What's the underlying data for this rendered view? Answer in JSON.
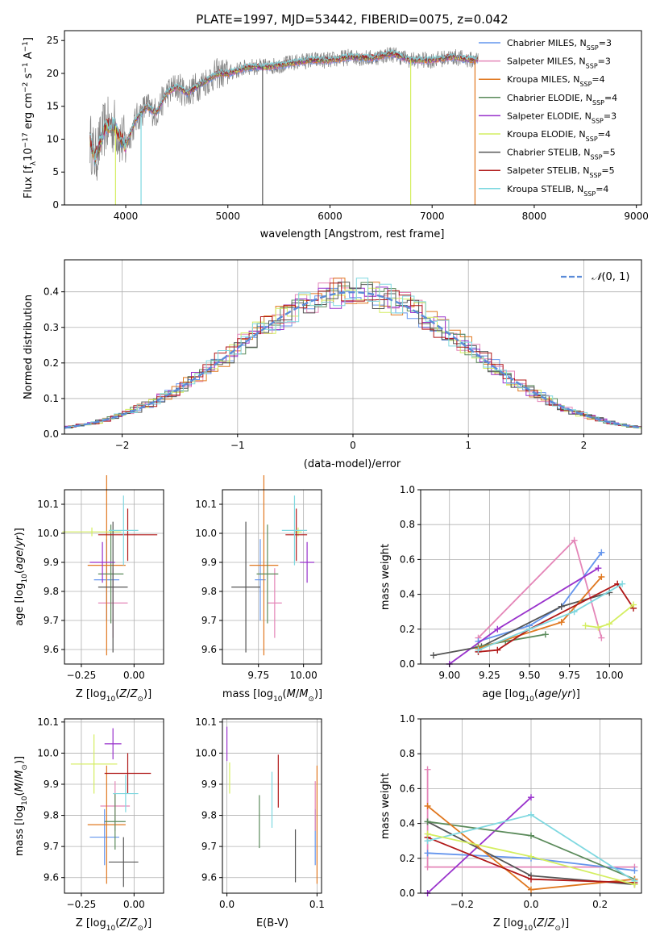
{
  "title": "PLATE=1997, MJD=53442, FIBERID=0075, z=0.042",
  "colors": {
    "Chabrier MILES": "#6495ed",
    "Salpeter MILES": "#e486b8",
    "Kroupa MILES": "#e07820",
    "Chabrier ELODIE": "#5a8a5a",
    "Salpeter ELODIE": "#9932cc",
    "Kroupa ELODIE": "#d4ee60",
    "Chabrier STELIB": "#555555",
    "Salpeter STELIB": "#b01818",
    "Kroupa STELIB": "#7fd8e0",
    "data": "#808080",
    "gaussian": "#5b8bd8"
  },
  "chart_data": [
    {
      "id": "spectrum",
      "type": "line",
      "xlabel": "wavelength [Angstrom, rest frame]",
      "xticks": [
        "4000",
        "5000",
        "6000",
        "7000",
        "8000",
        "9000"
      ],
      "yticks": [
        "0",
        "5",
        "10",
        "15",
        "20",
        "25"
      ],
      "xlim": [
        3400,
        9050
      ],
      "ylim": [
        0,
        26.5
      ],
      "legend_position": "upper right",
      "legend": [
        {
          "model": "Chabrier MILES",
          "nssp": "3"
        },
        {
          "model": "Salpeter MILES",
          "nssp": "3"
        },
        {
          "model": "Kroupa MILES",
          "nssp": "4"
        },
        {
          "model": "Chabrier ELODIE",
          "nssp": "4"
        },
        {
          "model": "Salpeter ELODIE",
          "nssp": "3"
        },
        {
          "model": "Kroupa ELODIE",
          "nssp": "4"
        },
        {
          "model": "Chabrier STELIB",
          "nssp": "5"
        },
        {
          "model": "Salpeter STELIB",
          "nssp": "5"
        },
        {
          "model": "Kroupa STELIB",
          "nssp": "4"
        }
      ],
      "data_envelope": {
        "x": [
          3650,
          3700,
          3800,
          3900,
          3950,
          4000,
          4100,
          4200,
          4300,
          4400,
          4500,
          4600,
          4700,
          4800,
          4900,
          5000,
          5200,
          5400,
          5600,
          5800,
          6000,
          6200,
          6400,
          6600,
          6800,
          7000,
          7200,
          7400,
          7600,
          7800,
          8000,
          8200,
          8400,
          8600,
          8800
        ],
        "y": [
          10,
          7,
          12,
          12,
          10,
          9,
          13,
          15,
          14,
          17,
          18,
          17,
          18,
          19,
          20,
          20,
          21,
          21,
          21.5,
          22,
          22,
          22.5,
          22.3,
          23,
          22,
          22,
          22.5,
          22,
          23,
          23,
          23,
          23.5,
          24,
          24.5,
          25
        ]
      },
      "drops": [
        {
          "x": 3900,
          "model": "Kroupa ELODIE"
        },
        {
          "x": 4150,
          "model": "Kroupa STELIB"
        },
        {
          "x": 5340,
          "model": "Chabrier STELIB"
        },
        {
          "x": 6790,
          "model": "Kroupa ELODIE"
        },
        {
          "x": 7420,
          "model": "Kroupa MILES"
        }
      ]
    },
    {
      "id": "residuals",
      "type": "step",
      "xlabel": "(data-model)/error",
      "ylabel": "Normed distribution",
      "xlim": [
        -2.5,
        2.5
      ],
      "ylim": [
        0,
        0.49
      ],
      "grid": true,
      "xticks": [
        "−2",
        "−1",
        "0",
        "1",
        "2"
      ],
      "yticks": [
        "0.0",
        "0.1",
        "0.2",
        "0.3",
        "0.4"
      ],
      "legend_label": "N(0,1)",
      "bin_width": 0.1,
      "curve": "normal pdf, mean 0, sigma 1"
    },
    {
      "id": "age-vs-Z",
      "type": "errorbar",
      "xlim": [
        -0.33,
        0.14
      ],
      "ylim": [
        9.55,
        10.15
      ],
      "xticks": [
        "−0.25",
        "0.00"
      ],
      "yticks": [
        "9.6",
        "9.7",
        "9.8",
        "9.9",
        "10.0",
        "10.1"
      ],
      "points": [
        {
          "model": "Chabrier MILES",
          "x": -0.13,
          "xe": 0.06,
          "y": 9.84,
          "ye": 0.14
        },
        {
          "model": "Salpeter MILES",
          "x": -0.1,
          "xe": 0.07,
          "y": 9.76,
          "ye": 0.12
        },
        {
          "model": "Kroupa MILES",
          "x": -0.13,
          "xe": 0.09,
          "y": 9.89,
          "ye": 0.31
        },
        {
          "model": "Chabrier ELODIE",
          "x": -0.11,
          "xe": 0.06,
          "y": 9.86,
          "ye": 0.17
        },
        {
          "model": "Salpeter ELODIE",
          "x": -0.15,
          "xe": 0.06,
          "y": 9.9,
          "ye": 0.07
        },
        {
          "model": "Kroupa ELODIE",
          "x": -0.2,
          "xe": 0.14,
          "y": 10.005,
          "ye": 0.015
        },
        {
          "model": "Chabrier STELIB",
          "x": -0.1,
          "xe": 0.07,
          "y": 9.815,
          "ye": 0.225
        },
        {
          "model": "Salpeter STELIB",
          "x": -0.03,
          "xe": 0.14,
          "y": 9.995,
          "ye": 0.09
        },
        {
          "model": "Kroupa STELIB",
          "x": -0.05,
          "xe": 0.07,
          "y": 10.01,
          "ye": 0.12
        }
      ]
    },
    {
      "id": "age-vs-mass",
      "type": "errorbar",
      "xlim": [
        9.55,
        10.1
      ],
      "ylim": [
        9.55,
        10.15
      ],
      "xticks": [
        "9.75",
        "10.00"
      ],
      "yticks": [
        "9.6",
        "9.7",
        "9.8",
        "9.9",
        "10.0",
        "10.1"
      ],
      "points": [
        {
          "model": "Chabrier MILES",
          "x": 9.76,
          "xe": 0.03,
          "y": 9.84,
          "ye": 0.14
        },
        {
          "model": "Salpeter MILES",
          "x": 9.84,
          "xe": 0.04,
          "y": 9.76,
          "ye": 0.12
        },
        {
          "model": "Kroupa MILES",
          "x": 9.78,
          "xe": 0.08,
          "y": 9.89,
          "ye": 0.31
        },
        {
          "model": "Chabrier ELODIE",
          "x": 9.8,
          "xe": 0.06,
          "y": 9.86,
          "ye": 0.17
        },
        {
          "model": "Salpeter ELODIE",
          "x": 10.02,
          "xe": 0.04,
          "y": 9.9,
          "ye": 0.07
        },
        {
          "model": "Kroupa ELODIE",
          "x": 9.97,
          "xe": 0.02,
          "y": 10.005,
          "ye": 0.015
        },
        {
          "model": "Chabrier STELIB",
          "x": 9.68,
          "xe": 0.08,
          "y": 9.815,
          "ye": 0.225
        },
        {
          "model": "Salpeter STELIB",
          "x": 9.96,
          "xe": 0.06,
          "y": 9.995,
          "ye": 0.09
        },
        {
          "model": "Kroupa STELIB",
          "x": 9.95,
          "xe": 0.07,
          "y": 10.01,
          "ye": 0.12
        }
      ]
    },
    {
      "id": "weight-vs-age",
      "type": "line",
      "xlabel": "age  [log10(age/yr)]",
      "ylabel": "mass weight",
      "xlim": [
        8.82,
        10.2
      ],
      "ylim": [
        0,
        1
      ],
      "grid": true,
      "xticks": [
        "9.00",
        "9.25",
        "9.50",
        "9.75",
        "10.00"
      ],
      "yticks": [
        "0.0",
        "0.2",
        "0.4",
        "0.6",
        "0.8",
        "1.0"
      ],
      "series": [
        {
          "model": "Salpeter MILES",
          "x": [
            9.18,
            9.78,
            9.95
          ],
          "y": [
            0.15,
            0.71,
            0.15
          ]
        },
        {
          "model": "Chabrier MILES",
          "x": [
            9.18,
            9.5,
            9.7,
            9.95
          ],
          "y": [
            0.13,
            0.22,
            0.33,
            0.64
          ]
        },
        {
          "model": "Salpeter ELODIE",
          "x": [
            9.0,
            9.3,
            9.93
          ],
          "y": [
            0.0,
            0.2,
            0.55
          ]
        },
        {
          "model": "Chabrier STELIB",
          "x": [
            8.9,
            9.2,
            9.7,
            10.0
          ],
          "y": [
            0.05,
            0.1,
            0.33,
            0.41
          ]
        },
        {
          "model": "Chabrier ELODIE",
          "x": [
            9.18,
            9.35,
            9.6
          ],
          "y": [
            0.1,
            0.13,
            0.17
          ]
        },
        {
          "model": "Kroupa MILES",
          "x": [
            9.18,
            9.7,
            9.95
          ],
          "y": [
            0.09,
            0.24,
            0.5
          ]
        },
        {
          "model": "Salpeter STELIB",
          "x": [
            9.18,
            9.3,
            9.5,
            10.05,
            10.15
          ],
          "y": [
            0.07,
            0.08,
            0.2,
            0.46,
            0.32
          ]
        },
        {
          "model": "Kroupa STELIB",
          "x": [
            9.18,
            9.5,
            9.78,
            10.08
          ],
          "y": [
            0.08,
            0.2,
            0.3,
            0.46
          ]
        },
        {
          "model": "Kroupa ELODIE",
          "x": [
            9.85,
            9.93,
            10.0,
            10.15
          ],
          "y": [
            0.22,
            0.21,
            0.23,
            0.34
          ]
        }
      ]
    },
    {
      "id": "mass-vs-Z",
      "type": "errorbar",
      "ylabel": "mass [log10(M/M☉)]",
      "xlim": [
        -0.33,
        0.14
      ],
      "ylim": [
        9.55,
        10.11
      ],
      "xticks": [
        "−0.25",
        "0.00"
      ],
      "yticks": [
        "9.6",
        "9.7",
        "9.8",
        "9.9",
        "10.0",
        "10.1"
      ],
      "points": [
        {
          "model": "Chabrier MILES",
          "x": -0.14,
          "xe": 0.07,
          "y": 9.73,
          "ye": 0.09
        },
        {
          "model": "Salpeter MILES",
          "x": -0.09,
          "xe": 0.07,
          "y": 9.83,
          "ye": 0.08
        },
        {
          "model": "Kroupa MILES",
          "x": -0.13,
          "xe": 0.09,
          "y": 9.77,
          "ye": 0.19
        },
        {
          "model": "Chabrier ELODIE",
          "x": -0.09,
          "xe": 0.05,
          "y": 9.78,
          "ye": 0.09
        },
        {
          "model": "Salpeter ELODIE",
          "x": -0.1,
          "xe": 0.04,
          "y": 10.03,
          "ye": 0.05
        },
        {
          "model": "Kroupa ELODIE",
          "x": -0.19,
          "xe": 0.11,
          "y": 9.965,
          "ye": 0.095
        },
        {
          "model": "Chabrier STELIB",
          "x": -0.05,
          "xe": 0.07,
          "y": 9.65,
          "ye": 0.08
        },
        {
          "model": "Salpeter STELIB",
          "x": -0.03,
          "xe": 0.11,
          "y": 9.935,
          "ye": 0.065
        },
        {
          "model": "Kroupa STELIB",
          "x": -0.04,
          "xe": 0.06,
          "y": 9.87,
          "ye": 0.06
        }
      ]
    },
    {
      "id": "mass-vs-EBV",
      "type": "errorbar",
      "xlabel": "E(B-V)",
      "xlim": [
        -0.005,
        0.105
      ],
      "ylim": [
        9.55,
        10.11
      ],
      "xticks": [
        "0.0",
        "0.1"
      ],
      "yticks": [
        "9.6",
        "9.7",
        "9.8",
        "9.9",
        "10.0",
        "10.1"
      ],
      "points": [
        {
          "model": "Chabrier MILES",
          "x": 0.098,
          "y": 9.73,
          "ye": 0.09
        },
        {
          "model": "Salpeter MILES",
          "x": 0.098,
          "y": 9.83,
          "ye": 0.08
        },
        {
          "model": "Kroupa MILES",
          "x": 0.1,
          "y": 9.77,
          "ye": 0.19
        },
        {
          "model": "Chabrier ELODIE",
          "x": 0.036,
          "y": 9.78,
          "ye": 0.085
        },
        {
          "model": "Salpeter ELODIE",
          "x": 0.0,
          "y": 10.03,
          "ye": 0.055
        },
        {
          "model": "Kroupa ELODIE",
          "x": 0.003,
          "y": 9.92,
          "ye": 0.05
        },
        {
          "model": "Chabrier STELIB",
          "x": 0.076,
          "y": 9.67,
          "ye": 0.085
        },
        {
          "model": "Salpeter STELIB",
          "x": 0.057,
          "y": 9.91,
          "ye": 0.085
        },
        {
          "model": "Kroupa STELIB",
          "x": 0.05,
          "y": 9.85,
          "ye": 0.09
        }
      ]
    },
    {
      "id": "weight-vs-Z",
      "type": "line",
      "ylabel": "mass weight",
      "xlim": [
        -0.32,
        0.32
      ],
      "ylim": [
        0,
        1
      ],
      "grid": true,
      "xticks": [
        "−0.2",
        "0.0",
        "0.2"
      ],
      "yticks": [
        "0.0",
        "0.2",
        "0.4",
        "0.6",
        "0.8",
        "1.0"
      ],
      "series": [
        {
          "model": "Salpeter MILES",
          "x": [
            -0.3,
            -0.3,
            0.3
          ],
          "y": [
            0.71,
            0.15,
            0.15
          ]
        },
        {
          "model": "Chabrier MILES",
          "x": [
            -0.3,
            0.0,
            0.3
          ],
          "y": [
            0.23,
            0.2,
            0.13
          ]
        },
        {
          "model": "Salpeter ELODIE",
          "x": [
            -0.3,
            0.0
          ],
          "y": [
            0.0,
            0.55
          ]
        },
        {
          "model": "Chabrier STELIB",
          "x": [
            -0.3,
            0.0,
            0.3
          ],
          "y": [
            0.41,
            0.1,
            0.05
          ]
        },
        {
          "model": "Chabrier ELODIE",
          "x": [
            -0.3,
            0.0,
            0.3
          ],
          "y": [
            0.41,
            0.33,
            0.08
          ]
        },
        {
          "model": "Kroupa MILES",
          "x": [
            -0.3,
            0.0,
            0.3
          ],
          "y": [
            0.5,
            0.02,
            0.08
          ]
        },
        {
          "model": "Salpeter STELIB",
          "x": [
            -0.3,
            0.0,
            0.3
          ],
          "y": [
            0.32,
            0.08,
            0.06
          ]
        },
        {
          "model": "Kroupa STELIB",
          "x": [
            -0.3,
            0.0,
            0.3
          ],
          "y": [
            0.3,
            0.45,
            0.07
          ]
        },
        {
          "model": "Kroupa ELODIE",
          "x": [
            -0.3,
            0.0,
            0.3
          ],
          "y": [
            0.34,
            0.21,
            0.05
          ]
        }
      ]
    }
  ]
}
